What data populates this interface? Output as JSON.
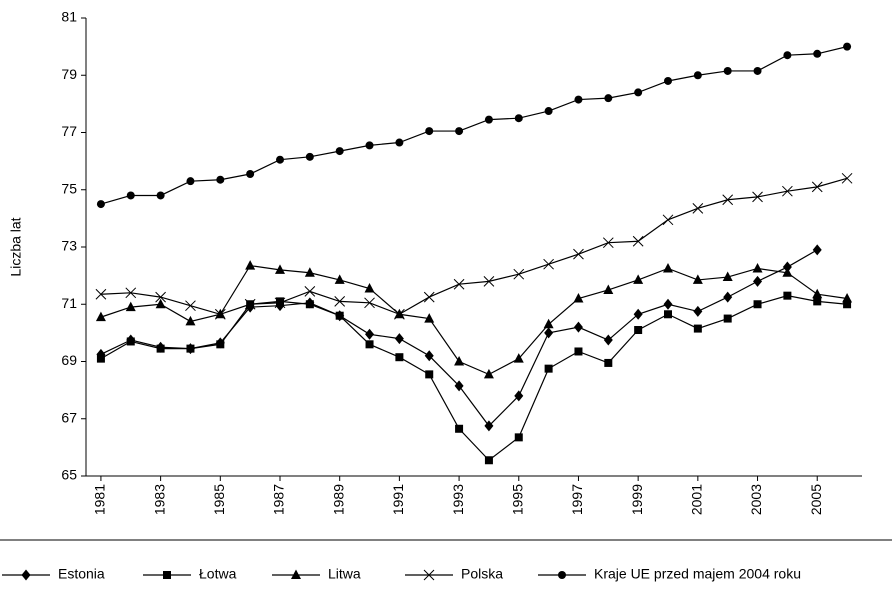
{
  "chart_data": {
    "type": "line",
    "y_label": "Liczba lat",
    "x": [
      1981,
      1982,
      1983,
      1984,
      1985,
      1986,
      1987,
      1988,
      1989,
      1990,
      1991,
      1992,
      1993,
      1994,
      1995,
      1996,
      1997,
      1998,
      1999,
      2000,
      2001,
      2002,
      2003,
      2004,
      2005,
      2006
    ],
    "xlim": [
      1980.5,
      2006.5
    ],
    "xticks": [
      1981,
      1983,
      1985,
      1987,
      1989,
      1991,
      1993,
      1995,
      1997,
      1999,
      2001,
      2003,
      2005
    ],
    "ylim": [
      65,
      81
    ],
    "yticks": [
      65,
      67,
      69,
      71,
      73,
      75,
      77,
      79,
      81
    ],
    "legend": "bottom",
    "series": [
      {
        "name": "Estonia",
        "color": "#000000",
        "marker": "diamond",
        "values": [
          69.25,
          69.75,
          69.5,
          69.45,
          69.65,
          70.9,
          70.95,
          71.05,
          70.6,
          69.95,
          69.8,
          69.2,
          68.15,
          66.75,
          67.8,
          70.0,
          70.2,
          69.75,
          70.65,
          71.0,
          70.75,
          71.25,
          71.8,
          72.3,
          72.9,
          null
        ]
      },
      {
        "name": "Łotwa",
        "color": "#000000",
        "marker": "square",
        "values": [
          69.1,
          69.7,
          69.45,
          69.45,
          69.6,
          71.0,
          71.1,
          71.0,
          70.6,
          69.6,
          69.15,
          68.55,
          66.65,
          65.55,
          66.35,
          68.75,
          69.35,
          68.95,
          70.1,
          70.65,
          70.15,
          70.5,
          71.0,
          71.3,
          71.1,
          71.0
        ]
      },
      {
        "name": "Litwa",
        "color": "#000000",
        "marker": "triangle",
        "values": [
          70.55,
          70.9,
          71.0,
          70.4,
          70.65,
          72.35,
          72.2,
          72.1,
          71.85,
          71.55,
          70.65,
          70.5,
          69.0,
          68.55,
          69.1,
          70.3,
          71.2,
          71.5,
          71.85,
          72.25,
          71.85,
          71.95,
          72.25,
          72.1,
          71.35,
          71.2
        ]
      },
      {
        "name": "Polska",
        "color": "#000000",
        "marker": "x",
        "values": [
          71.35,
          71.4,
          71.25,
          70.95,
          70.65,
          71.0,
          71.05,
          71.45,
          71.1,
          71.05,
          70.65,
          71.25,
          71.7,
          71.8,
          72.05,
          72.4,
          72.75,
          73.15,
          73.2,
          73.95,
          74.35,
          74.65,
          74.75,
          74.95,
          75.1,
          75.4
        ]
      },
      {
        "name": "Kraje UE przed majem 2004 roku",
        "color": "#000000",
        "marker": "circle",
        "values": [
          74.5,
          74.8,
          74.8,
          75.3,
          75.35,
          75.55,
          76.05,
          76.15,
          76.35,
          76.55,
          76.65,
          77.05,
          77.05,
          77.45,
          77.5,
          77.75,
          78.15,
          78.2,
          78.4,
          78.8,
          79.0,
          79.15,
          79.15,
          79.7,
          79.75,
          80.0
        ]
      }
    ]
  }
}
